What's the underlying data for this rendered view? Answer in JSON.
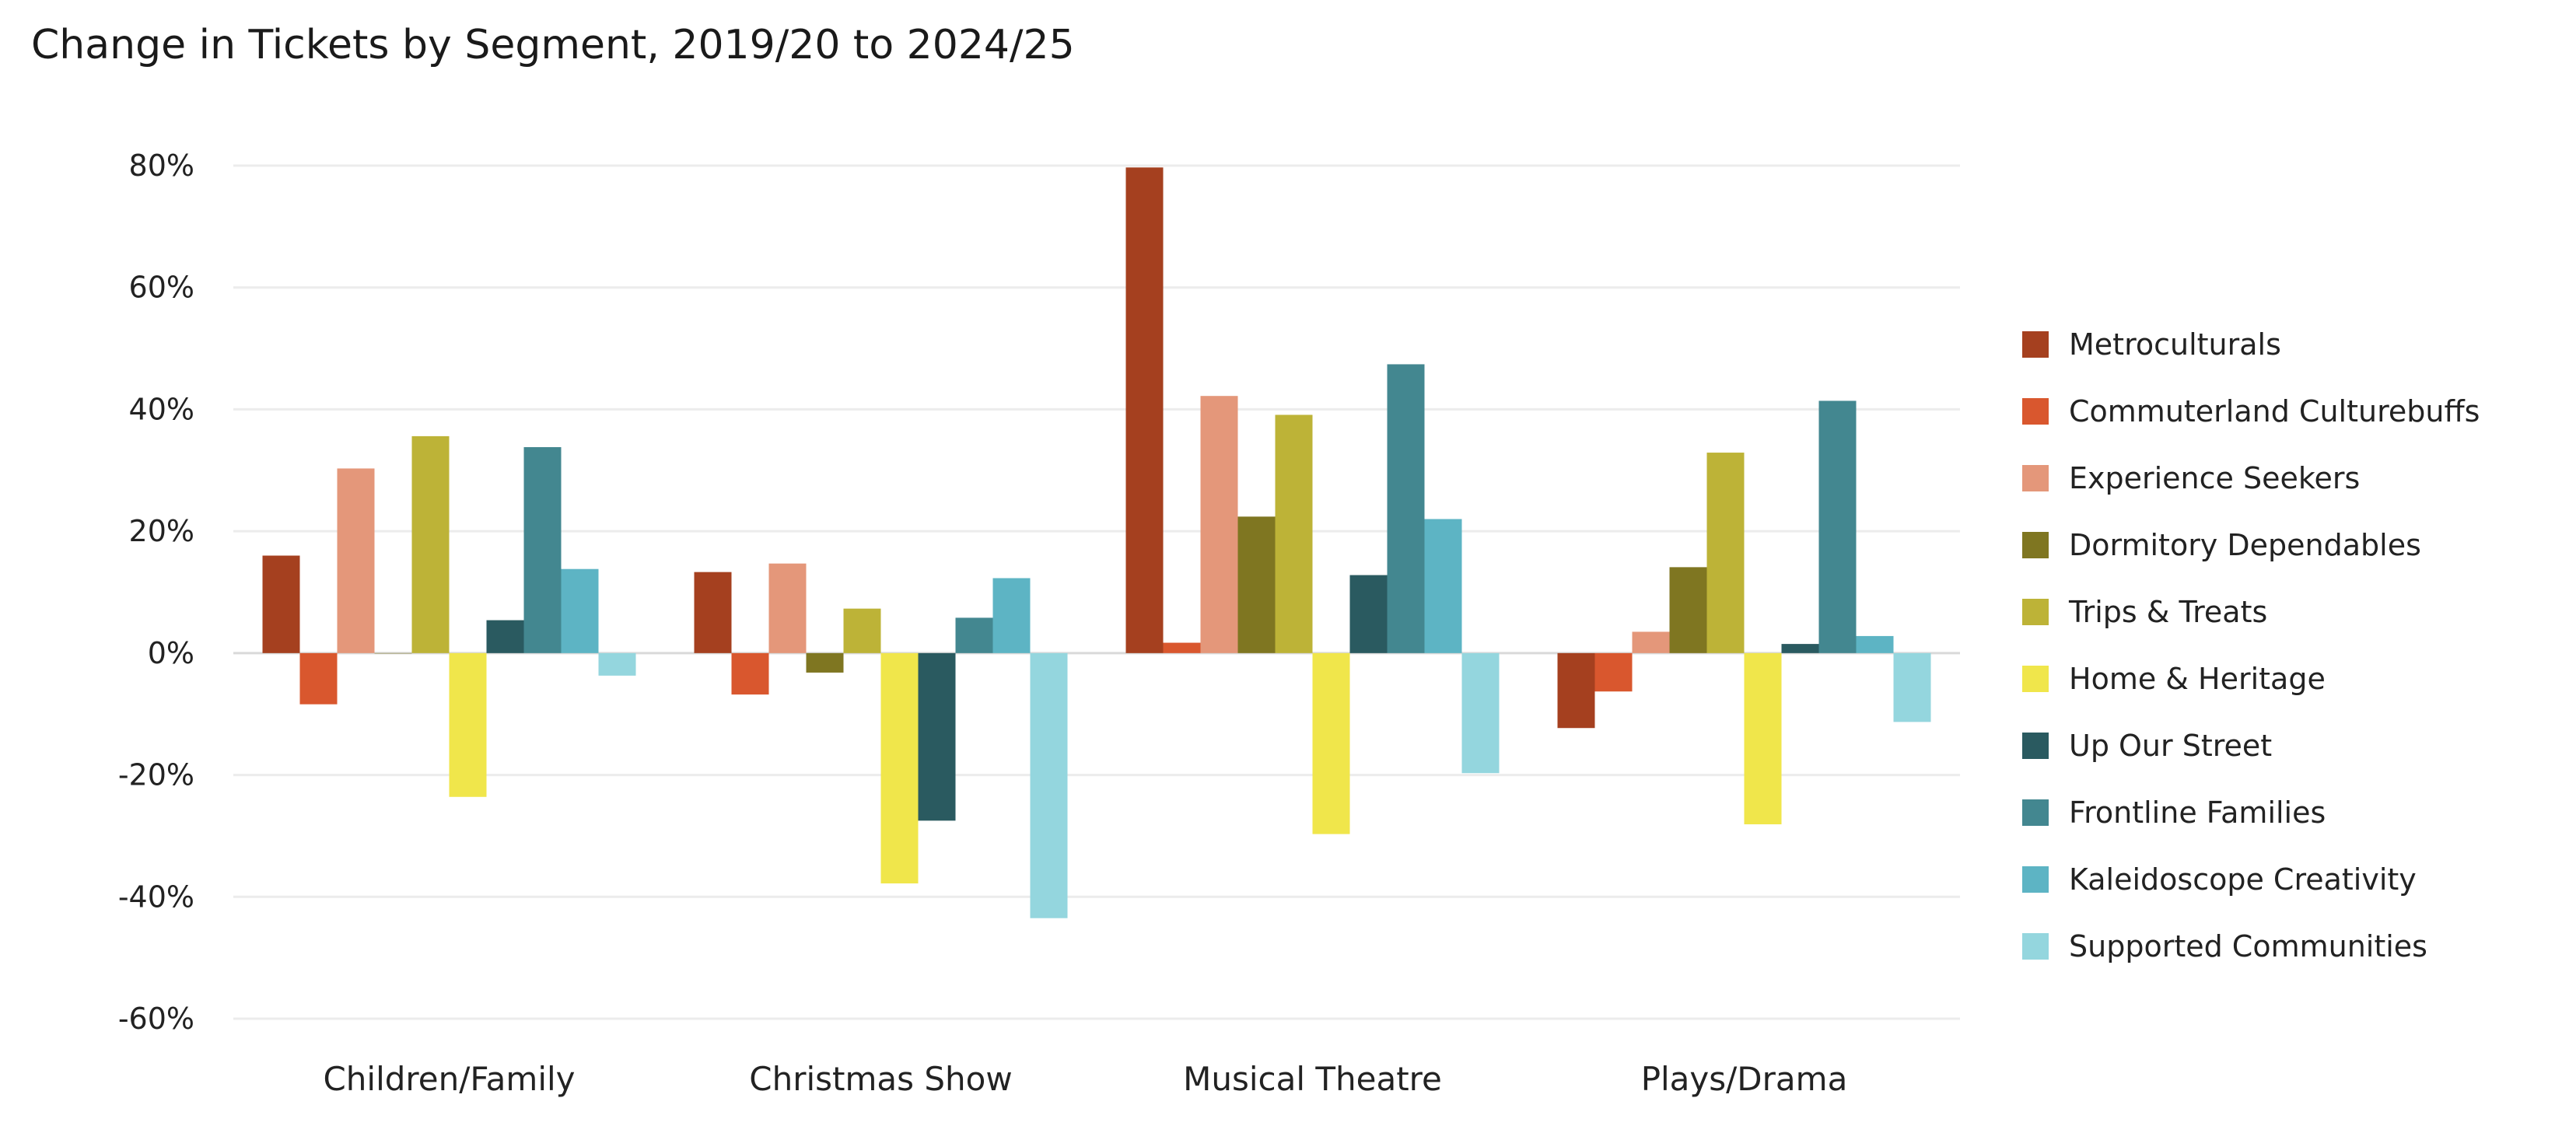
{
  "chart_data": {
    "type": "bar",
    "title": "Change in Tickets by Segment, 2019/20 to 2024/25",
    "xlabel": "",
    "ylabel": "",
    "ylim": [
      -60,
      80
    ],
    "yticks": [
      80,
      60,
      40,
      20,
      0,
      -20,
      -40,
      -60
    ],
    "ytick_labels": [
      "80%",
      "60%",
      "40%",
      "20%",
      "0%",
      "-20%",
      "-40%",
      "-60%"
    ],
    "grid": true,
    "legend_position": "right",
    "categories": [
      "Children/Family",
      "Christmas Show",
      "Musical Theatre",
      "Plays/Drama"
    ],
    "series": [
      {
        "name": "Metroculturals",
        "color": "#A5401F",
        "values": [
          16,
          13.3,
          79.7,
          -12.3
        ]
      },
      {
        "name": "Commuterland Culturebuffs",
        "color": "#D9572E",
        "values": [
          -8.4,
          -6.8,
          1.7,
          -6.3
        ]
      },
      {
        "name": "Experience Seekers",
        "color": "#E4977A",
        "values": [
          30.3,
          14.7,
          42.2,
          3.5
        ]
      },
      {
        "name": "Dormitory Dependables",
        "color": "#7F7621",
        "values": [
          0,
          -3.2,
          22.4,
          14.1
        ]
      },
      {
        "name": "Trips & Treats",
        "color": "#BDB337",
        "values": [
          35.6,
          7.3,
          39.1,
          32.9
        ]
      },
      {
        "name": "Home & Heritage",
        "color": "#F0E64B",
        "values": [
          -23.6,
          -37.8,
          -29.7,
          -28.1
        ]
      },
      {
        "name": "Up Our Street",
        "color": "#2A5A60",
        "values": [
          5.4,
          -27.5,
          12.8,
          1.5
        ]
      },
      {
        "name": "Frontline Families",
        "color": "#438790",
        "values": [
          33.8,
          5.8,
          47.4,
          41.4
        ]
      },
      {
        "name": "Kaleidoscope Creativity",
        "color": "#5DB4C4",
        "values": [
          13.8,
          12.3,
          22,
          2.8
        ]
      },
      {
        "name": "Supported Communities",
        "color": "#94D6DE",
        "values": [
          -3.7,
          -43.5,
          -19.7,
          -11.3
        ]
      }
    ]
  }
}
